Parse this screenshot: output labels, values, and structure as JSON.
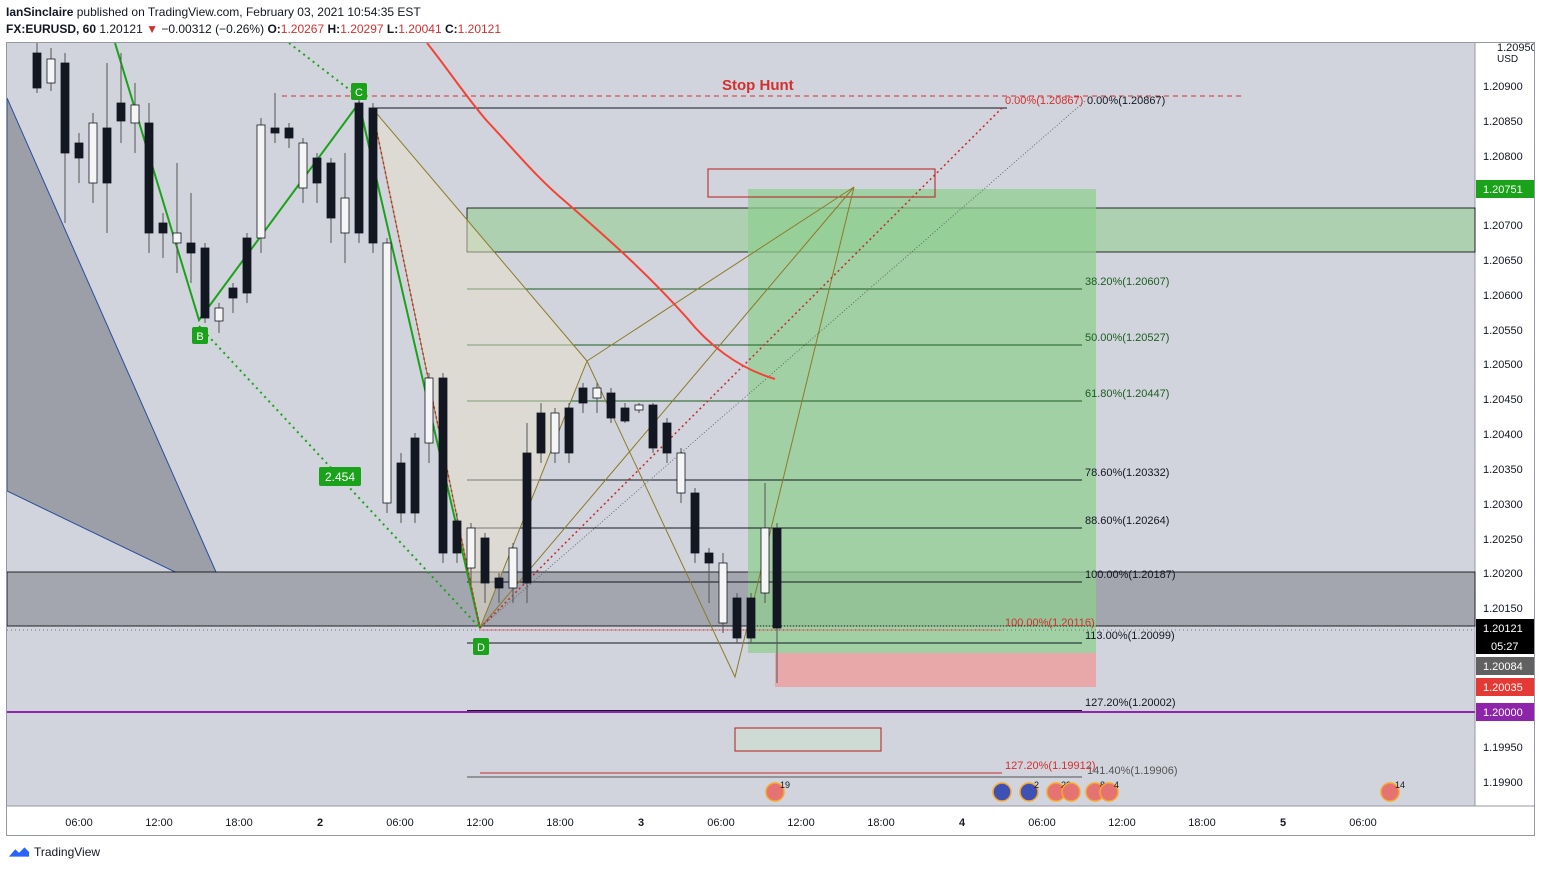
{
  "header": {
    "publisher": "IanSinclaire",
    "published_text": "published on TradingView.com, February 03, 2021 10:54:35 EST",
    "symbol": "FX:EURUSD, 60",
    "last": "1.20121",
    "change": "−0.00312 (−0.26%)",
    "o_label": "O:",
    "o": "1.20267",
    "h_label": "H:",
    "h": "1.20297",
    "l_label": "L:",
    "l": "1.20041",
    "c_label": "C:",
    "c": "1.20121"
  },
  "price_axis": {
    "currency": "USD",
    "top_partial": "1.20950",
    "ticks": [
      "1.20900",
      "1.20850",
      "1.20800",
      "1.20750",
      "1.20700",
      "1.20650",
      "1.20600",
      "1.20550",
      "1.20500",
      "1.20450",
      "1.20400",
      "1.20350",
      "1.20300",
      "1.20250",
      "1.20200",
      "1.20150",
      "1.20100",
      "1.20050",
      "1.20000",
      "1.19950",
      "1.19900"
    ],
    "badges": {
      "green": "1.20751",
      "last_price": "1.20121",
      "countdown": "05:27",
      "gray": "1.20084",
      "red": "1.20035",
      "purple": "1.20000"
    }
  },
  "time_axis": [
    "06:00",
    "12:00",
    "18:00",
    "2",
    "06:00",
    "12:00",
    "18:00",
    "3",
    "06:00",
    "12:00",
    "18:00",
    "4",
    "06:00",
    "12:00",
    "18:00",
    "5",
    "06:00"
  ],
  "annotations": {
    "stop_hunt": "Stop Hunt",
    "point_b": "B",
    "point_c": "C",
    "point_d": "D",
    "ratio": "2.454"
  },
  "fib_levels": [
    {
      "label": "0.00%(1.20867)",
      "color": "#131722"
    },
    {
      "label": "38.20%(1.20607)",
      "color": "#1b5e20"
    },
    {
      "label": "50.00%(1.20527)",
      "color": "#1b5e20"
    },
    {
      "label": "61.80%(1.20447)",
      "color": "#1b5e20"
    },
    {
      "label": "78.60%(1.20332)",
      "color": "#131722"
    },
    {
      "label": "88.60%(1.20264)",
      "color": "#131722"
    },
    {
      "label": "100.00%(1.20187)",
      "color": "#131722"
    },
    {
      "label": "113.00%(1.20099)",
      "color": "#131722"
    },
    {
      "label": "127.20%(1.20002)",
      "color": "#131722"
    },
    {
      "label": "141.40%(1.19906)",
      "color": "#555555"
    }
  ],
  "fib_red_levels": [
    {
      "label": "0.00%(1.20867)"
    },
    {
      "label": "100.00%(1.20116)"
    },
    {
      "label": "127.20%(1.19912)"
    }
  ],
  "event_badges": [
    "19",
    "2",
    "29",
    "8",
    "4",
    "14"
  ],
  "footer": {
    "brand": "TradingView"
  }
}
